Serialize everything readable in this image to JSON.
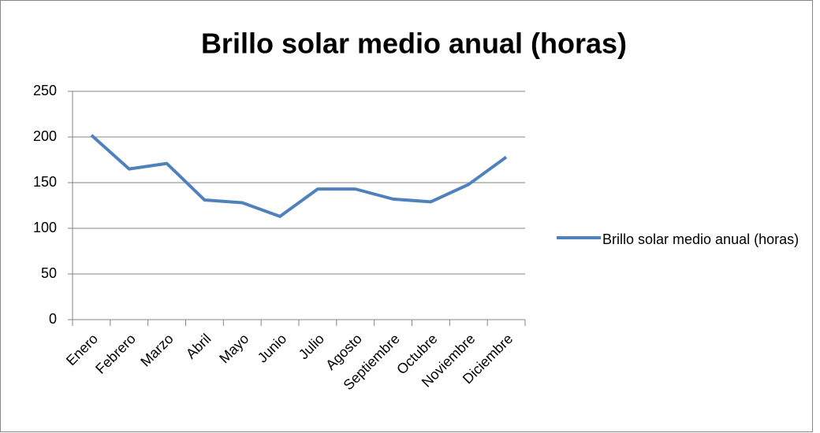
{
  "chart_data": {
    "type": "line",
    "title": "Brillo solar medio anual (horas)",
    "categories": [
      "Enero",
      "Febrero",
      "Marzo",
      "Abril",
      "Mayo",
      "Junio",
      "Julio",
      "Agosto",
      "Septiembre",
      "Octubre",
      "Noviembre",
      "Diciembre"
    ],
    "series": [
      {
        "name": "Brillo solar medio anual (horas)",
        "color": "#4f81bd",
        "values": [
          202,
          165,
          171,
          131,
          128,
          113,
          143,
          143,
          132,
          129,
          148,
          178
        ]
      }
    ],
    "ylim": [
      0,
      250
    ],
    "yticks": [
      0,
      50,
      100,
      150,
      200,
      250
    ],
    "grid": true,
    "legend": "right"
  }
}
